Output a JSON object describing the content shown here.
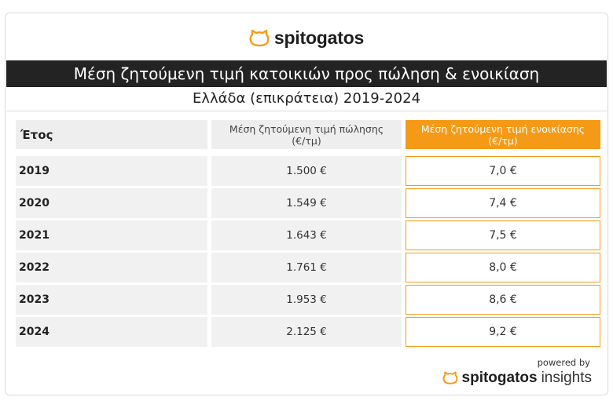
{
  "brand": {
    "name": "spitogatos",
    "accent": "#f59a17",
    "icon": "cat-house-icon"
  },
  "title": "Μέση ζητούμενη τιμή κατοικιών προς πώληση & ενοικίαση",
  "subtitle": "Ελλάδα (επικράτεια) 2019-2024",
  "table": {
    "headers": {
      "year": "Έτος",
      "sale_line1": "Μέση ζητούμενη τιμή πώλησης",
      "sale_line2": "(€/τμ)",
      "rent_line1": "Μέση ζητούμενη τιμή ενοικίασης",
      "rent_line2": "(€/τμ)"
    },
    "rows": [
      {
        "year": "2019",
        "sale": "1.500 €",
        "rent": "7,0 €"
      },
      {
        "year": "2020",
        "sale": "1.549 €",
        "rent": "7,4 €"
      },
      {
        "year": "2021",
        "sale": "1.643 €",
        "rent": "7,5 €"
      },
      {
        "year": "2022",
        "sale": "1.761 €",
        "rent": "8,0 €"
      },
      {
        "year": "2023",
        "sale": "1.953 €",
        "rent": "8,6 €"
      },
      {
        "year": "2024",
        "sale": "2.125 €",
        "rent": "9,2 €"
      }
    ]
  },
  "footer": {
    "powered_by": "powered by",
    "brand": "spitogatos",
    "product": "insights"
  }
}
